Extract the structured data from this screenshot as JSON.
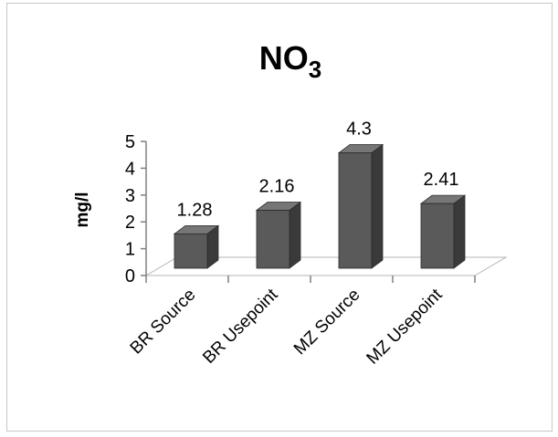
{
  "chart_data": {
    "type": "bar",
    "title": "NO",
    "title_subscript": "3",
    "ylabel": "mg/l",
    "xlabel": "",
    "categories": [
      "BR Source",
      "BR Usepoint",
      "MZ Source",
      "MZ Usepoint"
    ],
    "values": [
      1.28,
      2.16,
      4.3,
      2.41
    ],
    "data_labels": [
      "1.28",
      "2.16",
      "4.3",
      "2.41"
    ],
    "yticks": [
      "0",
      "1",
      "2",
      "3",
      "4",
      "5"
    ],
    "ylim": [
      0,
      5
    ],
    "grid": false,
    "legend": "none",
    "bar_color": "#5a5a5a",
    "style": "3d-column"
  }
}
